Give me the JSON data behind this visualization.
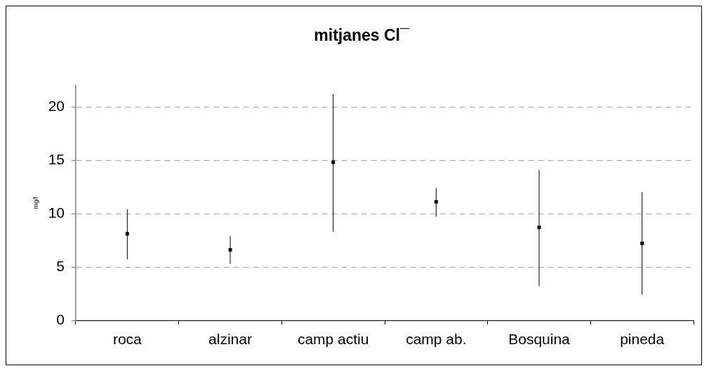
{
  "chart_data": {
    "type": "scatter",
    "title": "mitjanes Cl¯",
    "ylabel": "mg/l",
    "categories": [
      "roca",
      "alzinar",
      "camp actiu",
      "camp ab.",
      "Bosquina",
      "pineda"
    ],
    "series": [
      {
        "color": "#000000",
        "values": [
          8.1,
          6.6,
          14.8,
          11.1,
          8.7,
          7.2
        ],
        "errors": [
          [
            5.7,
            10.4
          ],
          [
            5.3,
            7.9
          ],
          [
            8.3,
            21.2
          ],
          [
            9.7,
            12.4
          ],
          [
            3.2,
            14.1
          ],
          [
            2.4,
            12.0
          ]
        ]
      }
    ],
    "ylim": [
      0,
      22
    ],
    "yticks": [
      0,
      5,
      10,
      15,
      20
    ],
    "grid": "y",
    "marker": "square"
  }
}
